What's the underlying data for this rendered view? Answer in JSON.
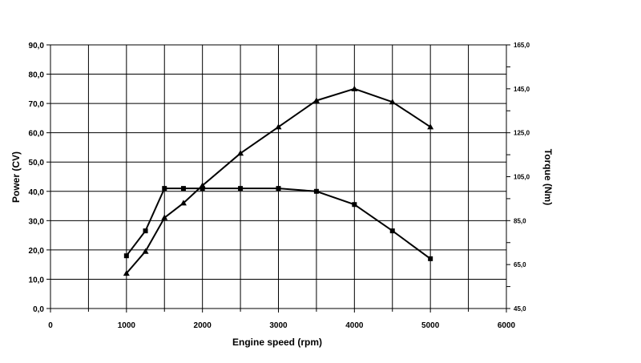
{
  "chart_data": {
    "type": "line",
    "xlabel": "Engine speed (rpm)",
    "ylabel": "Power (CV)",
    "y2label": "Torque (Nm)",
    "xlim": [
      0,
      6000
    ],
    "ylim": [
      0,
      90
    ],
    "y2lim": [
      45,
      165
    ],
    "grid": true,
    "x_ticks": [
      "0",
      "1000",
      "2000",
      "3000",
      "4000",
      "5000",
      "6000"
    ],
    "y_ticks": [
      "0,0",
      "10,0",
      "20,0",
      "30,0",
      "40,0",
      "50,0",
      "60,0",
      "70,0",
      "80,0",
      "90,0"
    ],
    "y2_ticks": [
      "45,0",
      "65,0",
      "85,0",
      "105,0",
      "125,0",
      "145,0",
      "165,0"
    ],
    "series": [
      {
        "marker": "triangle",
        "axis": "left",
        "x": [
          1000,
          1250,
          1500,
          1750,
          2000,
          2500,
          3000,
          3500,
          4000,
          4500,
          5000
        ],
        "y": [
          12.0,
          19.5,
          31.0,
          36.0,
          42.0,
          53.0,
          62.0,
          71.0,
          75.0,
          70.5,
          62.0
        ]
      },
      {
        "marker": "square",
        "axis": "left",
        "x": [
          1000,
          1250,
          1500,
          1750,
          2000,
          2500,
          3000,
          3500,
          4000,
          4500,
          5000
        ],
        "y": [
          18.0,
          26.5,
          41.0,
          41.0,
          41.0,
          41.0,
          41.0,
          40.0,
          35.5,
          26.5,
          17.0
        ]
      }
    ]
  }
}
